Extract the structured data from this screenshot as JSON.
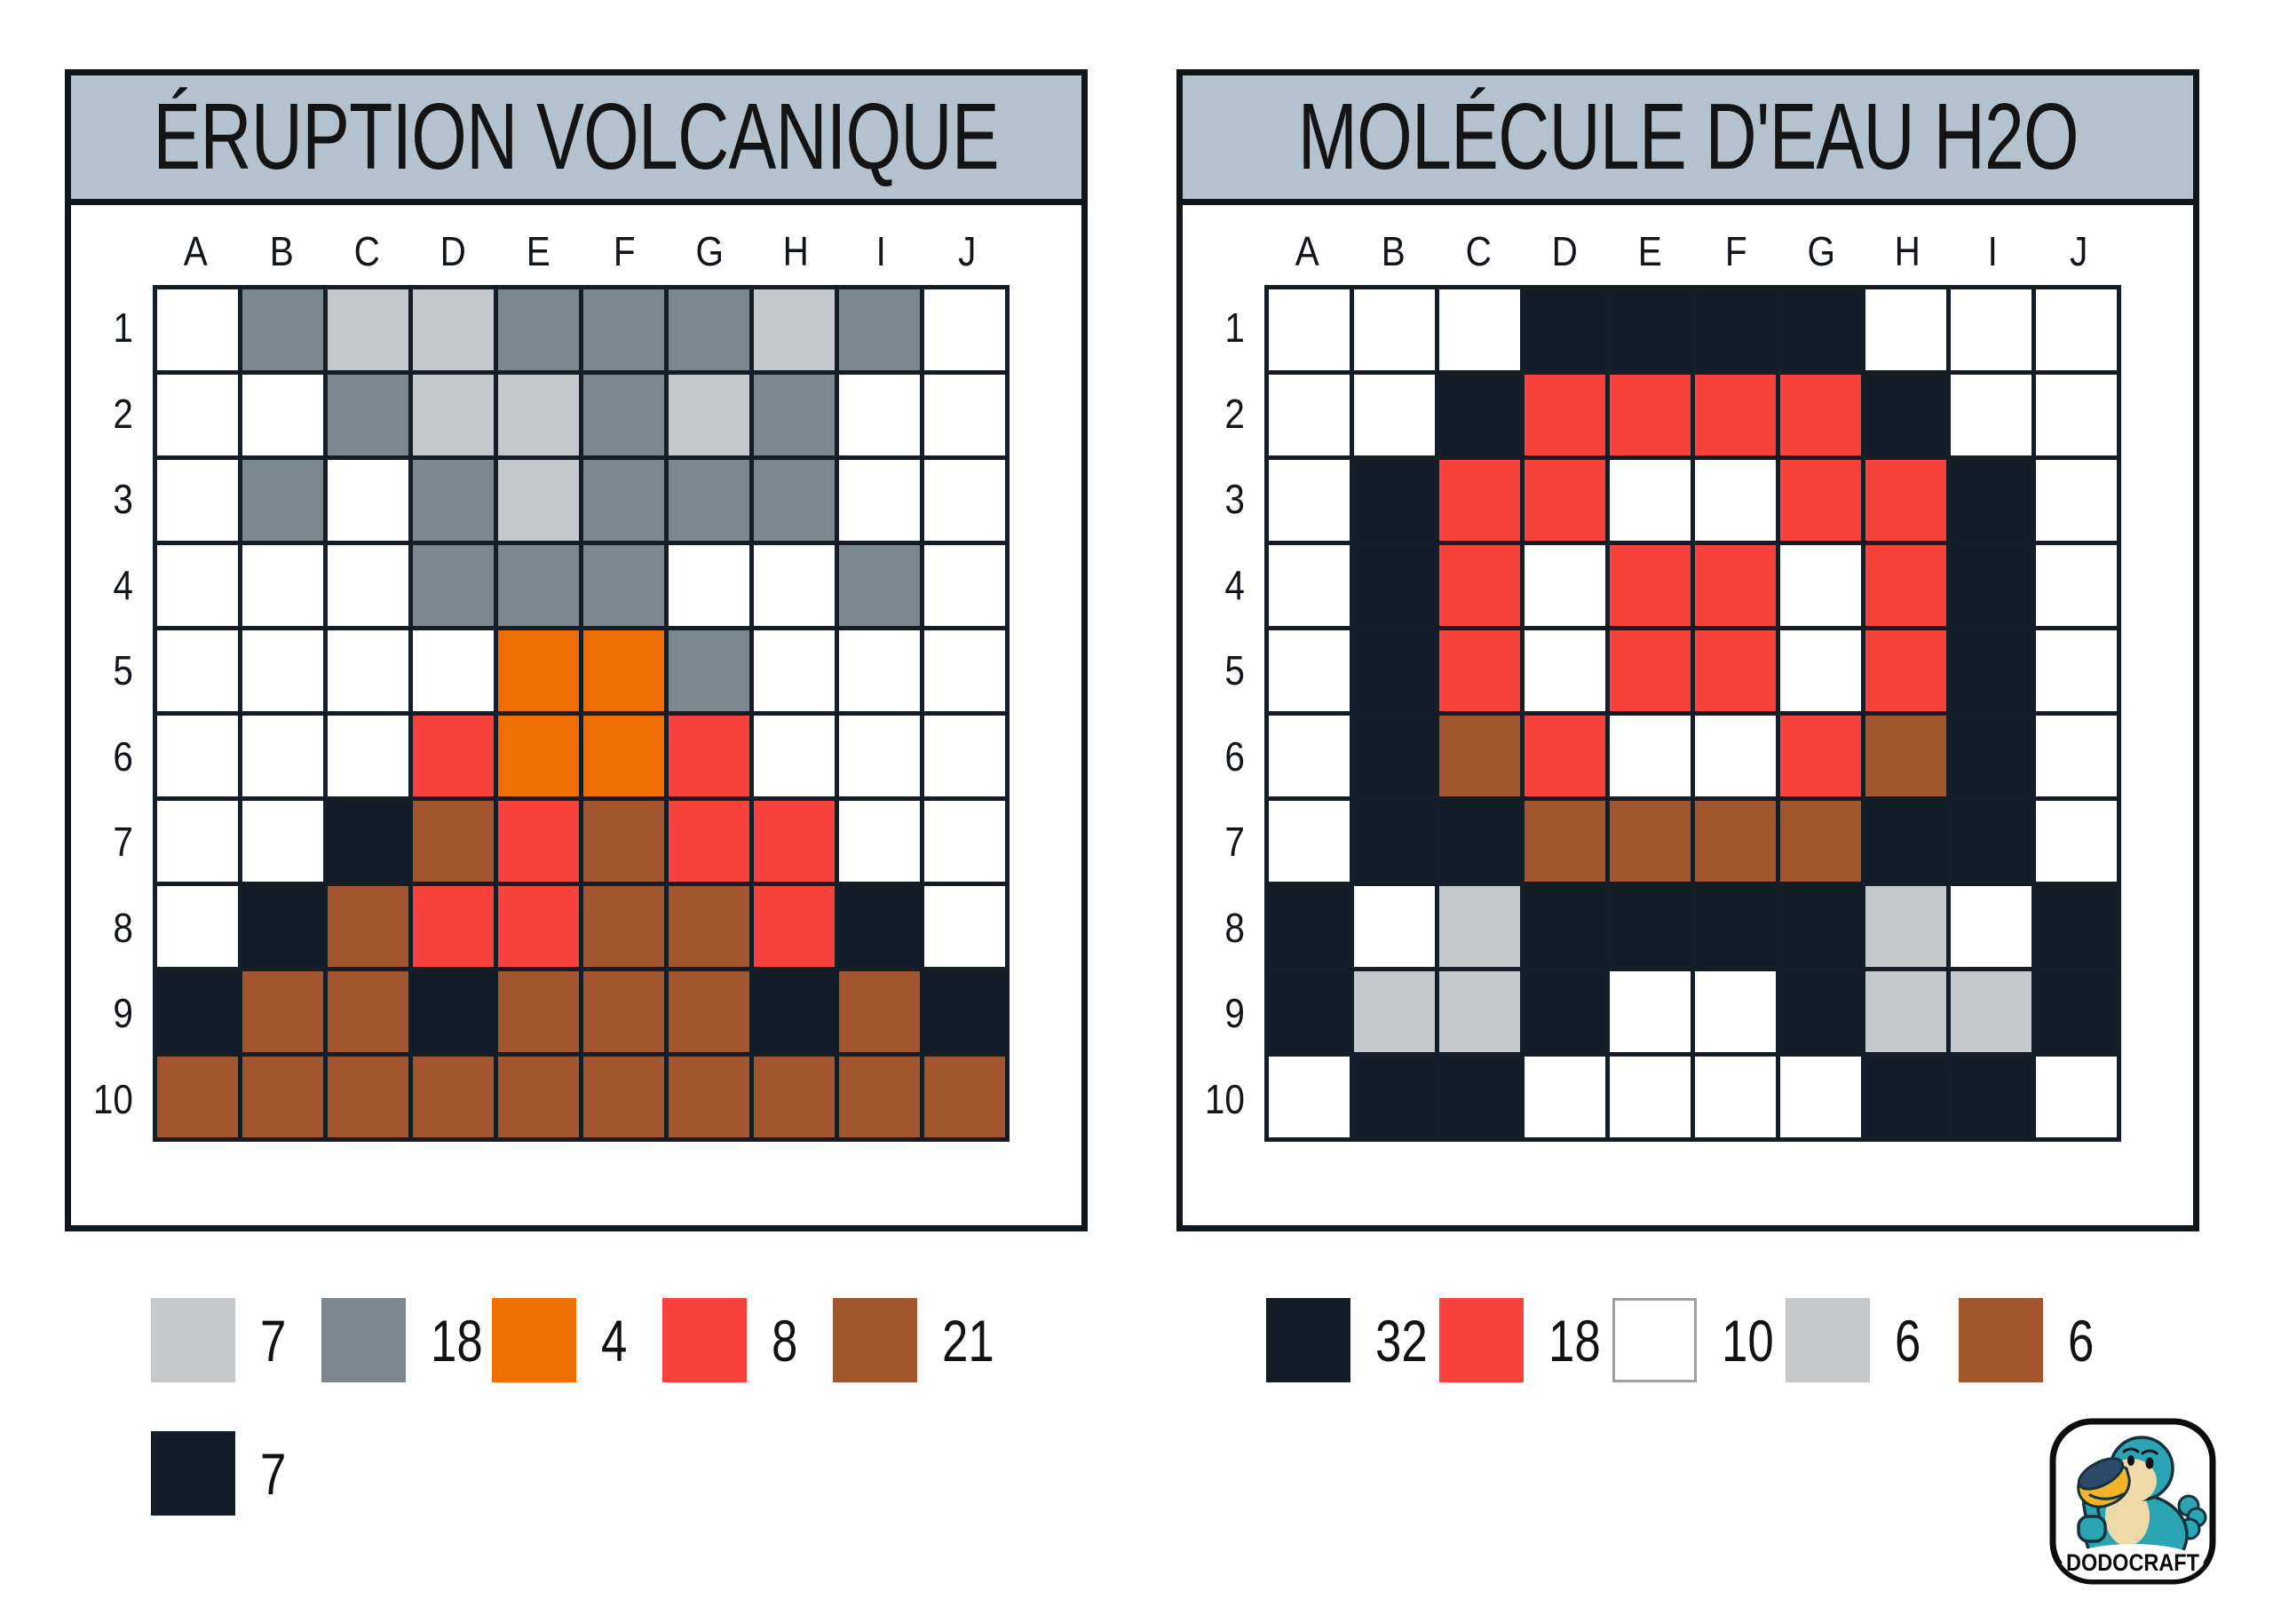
{
  "palette": {
    "W": "#ffffff",
    "L": "#c5c9cc",
    "G": "#7d878f",
    "O": "#ee6e00",
    "R": "#f8423b",
    "B": "#a3552d",
    "K": "#141d27"
  },
  "colors": {
    "header_bg": "#b4c2cd",
    "grid_line": "#151e28",
    "panel_border": "#10161c",
    "white_swatch_border": "#9aa0a4"
  },
  "boards": [
    {
      "title": "ÉRUPTION VOLCANIQUE",
      "column_labels": [
        "A",
        "B",
        "C",
        "D",
        "E",
        "F",
        "G",
        "H",
        "I",
        "J"
      ],
      "row_labels": [
        "1",
        "2",
        "3",
        "4",
        "5",
        "6",
        "7",
        "8",
        "9",
        "10"
      ],
      "rows": [
        [
          "W",
          "G",
          "L",
          "L",
          "G",
          "G",
          "G",
          "L",
          "G",
          "W"
        ],
        [
          "W",
          "W",
          "G",
          "L",
          "L",
          "G",
          "L",
          "G",
          "W",
          "W"
        ],
        [
          "W",
          "G",
          "W",
          "G",
          "L",
          "G",
          "G",
          "G",
          "W",
          "W"
        ],
        [
          "W",
          "W",
          "W",
          "G",
          "G",
          "G",
          "W",
          "W",
          "G",
          "W"
        ],
        [
          "W",
          "W",
          "W",
          "W",
          "O",
          "O",
          "G",
          "W",
          "W",
          "W"
        ],
        [
          "W",
          "W",
          "W",
          "R",
          "O",
          "O",
          "R",
          "W",
          "W",
          "W"
        ],
        [
          "W",
          "W",
          "K",
          "B",
          "R",
          "B",
          "R",
          "R",
          "W",
          "W"
        ],
        [
          "W",
          "K",
          "B",
          "R",
          "R",
          "B",
          "B",
          "R",
          "K",
          "W"
        ],
        [
          "K",
          "B",
          "B",
          "K",
          "B",
          "B",
          "B",
          "K",
          "B",
          "K"
        ],
        [
          "B",
          "B",
          "B",
          "B",
          "B",
          "B",
          "B",
          "B",
          "B",
          "B"
        ]
      ],
      "legend": [
        {
          "code": "L",
          "count": "7"
        },
        {
          "code": "G",
          "count": "18"
        },
        {
          "code": "O",
          "count": "4"
        },
        {
          "code": "R",
          "count": "8"
        },
        {
          "code": "B",
          "count": "21"
        }
      ],
      "legend_row2": [
        {
          "code": "K",
          "count": "7"
        }
      ]
    },
    {
      "title": "MOLÉCULE D'EAU H2O",
      "column_labels": [
        "A",
        "B",
        "C",
        "D",
        "E",
        "F",
        "G",
        "H",
        "I",
        "J"
      ],
      "row_labels": [
        "1",
        "2",
        "3",
        "4",
        "5",
        "6",
        "7",
        "8",
        "9",
        "10"
      ],
      "rows": [
        [
          "W",
          "W",
          "W",
          "K",
          "K",
          "K",
          "K",
          "W",
          "W",
          "W"
        ],
        [
          "W",
          "W",
          "K",
          "R",
          "R",
          "R",
          "R",
          "K",
          "W",
          "W"
        ],
        [
          "W",
          "K",
          "R",
          "R",
          "W",
          "W",
          "R",
          "R",
          "K",
          "W"
        ],
        [
          "W",
          "K",
          "R",
          "W",
          "R",
          "R",
          "W",
          "R",
          "K",
          "W"
        ],
        [
          "W",
          "K",
          "R",
          "W",
          "R",
          "R",
          "W",
          "R",
          "K",
          "W"
        ],
        [
          "W",
          "K",
          "B",
          "R",
          "W",
          "W",
          "R",
          "B",
          "K",
          "W"
        ],
        [
          "W",
          "K",
          "K",
          "B",
          "B",
          "B",
          "B",
          "K",
          "K",
          "W"
        ],
        [
          "K",
          "W",
          "L",
          "K",
          "K",
          "K",
          "K",
          "L",
          "W",
          "K"
        ],
        [
          "K",
          "L",
          "L",
          "K",
          "W",
          "W",
          "K",
          "L",
          "L",
          "K"
        ],
        [
          "W",
          "K",
          "K",
          "W",
          "W",
          "W",
          "W",
          "K",
          "K",
          "W"
        ]
      ],
      "legend": [
        {
          "code": "K",
          "count": "32"
        },
        {
          "code": "R",
          "count": "18"
        },
        {
          "code": "W",
          "count": "10"
        },
        {
          "code": "L",
          "count": "6"
        },
        {
          "code": "B",
          "count": "6"
        }
      ]
    }
  ],
  "logo": {
    "text": "DODOCRAFT"
  }
}
